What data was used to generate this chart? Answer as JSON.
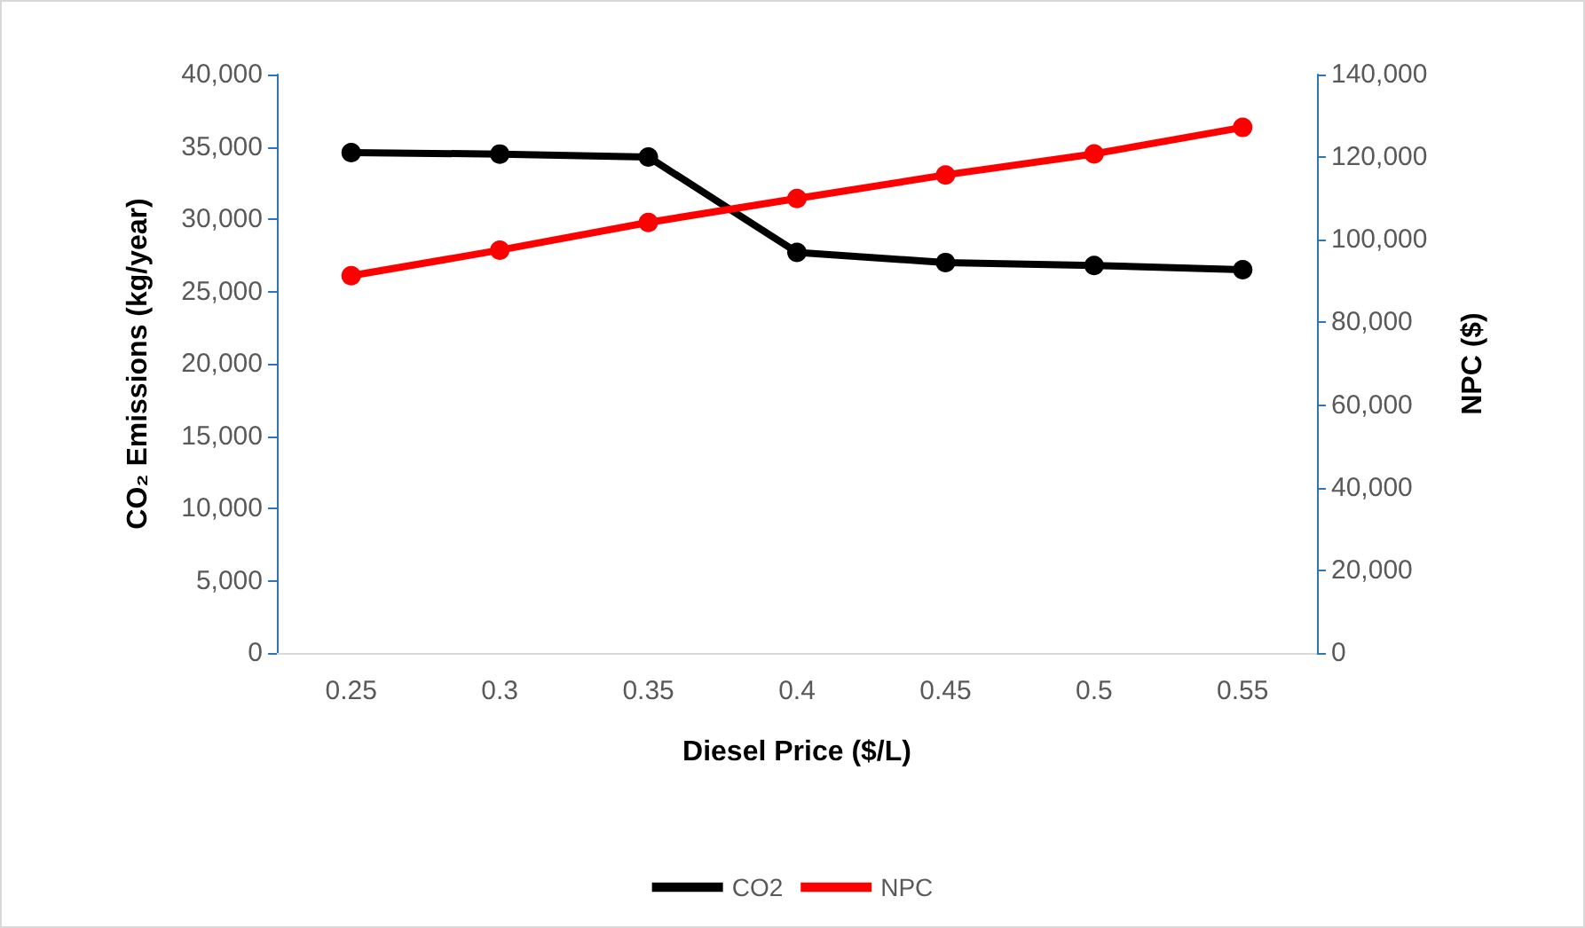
{
  "chart_data": {
    "type": "line",
    "xlabel": "Diesel Price ($/L)",
    "ylabel": "CO₂ Emissions (kg/year)",
    "y2label": "NPC ($)",
    "categories": [
      "0.25",
      "0.3",
      "0.35",
      "0.4",
      "0.45",
      "0.5",
      "0.55"
    ],
    "series": [
      {
        "name": "CO2",
        "color": "#000000",
        "values": [
          34600,
          34500,
          34300,
          27700,
          27000,
          26800,
          26500
        ]
      },
      {
        "name": "NPC",
        "color": "#ff0000",
        "axis": "y2",
        "values": [
          91300,
          97500,
          104200,
          110000,
          115700,
          120800,
          127200
        ]
      }
    ],
    "ylim": [
      0,
      40000
    ],
    "yticks": [
      0,
      {
        "value": 5000,
        "label": "5,000"
      },
      {
        "value": 10000,
        "label": "10,000"
      },
      {
        "value": 15000,
        "label": "15,000"
      },
      {
        "value": 20000,
        "label": "20,000"
      },
      {
        "value": 25000,
        "label": "25,000"
      },
      {
        "value": 30000,
        "label": "30,000"
      },
      {
        "value": 35000,
        "label": "35,000"
      },
      {
        "value": 40000,
        "label": "40,000"
      }
    ],
    "y2lim": [
      0,
      140000
    ],
    "y2ticks": [
      0,
      {
        "value": 20000,
        "label": "20,000"
      },
      {
        "value": 40000,
        "label": "40,000"
      },
      {
        "value": 60000,
        "label": "60,000"
      },
      {
        "value": 80000,
        "label": "80,000"
      },
      {
        "value": 100000,
        "label": "100,000"
      },
      {
        "value": 120000,
        "label": "120,000"
      },
      {
        "value": 140000,
        "label": "140,000"
      }
    ],
    "legend": "bottom",
    "grid": false,
    "marker": "circle",
    "line_style": "solid"
  }
}
